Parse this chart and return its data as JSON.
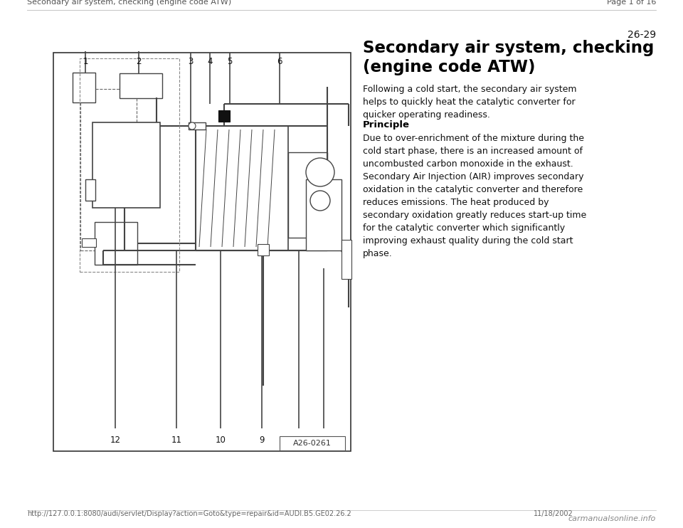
{
  "bg_color": "#ffffff",
  "header_left": "Secondary air system, checking (engine code ATW)",
  "header_right": "Page 1 of 16",
  "page_number": "26-29",
  "title": "Secondary air system, checking\n(engine code ATW)",
  "para1": "Following a cold start, the secondary air system\nhelps to quickly heat the catalytic converter for\nquicker operating readiness.",
  "section_heading": "Principle",
  "para2": "Due to over-enrichment of the mixture during the\ncold start phase, there is an increased amount of\nuncombusted carbon monoxide in the exhaust.\nSecondary Air Injection (AIR) improves secondary\noxidation in the catalytic converter and therefore\nreduces emissions. The heat produced by\nsecondary oxidation greatly reduces start-up time\nfor the catalytic converter which significantly\nimproving exhaust quality during the cold start\nphase.",
  "diagram_label": "A26-0261",
  "footer_url": "http://127.0.0.1:8080/audi/servlet/Display?action=Goto&type=repair&id=AUDI.B5.GE02.26.2",
  "footer_date": "11/18/2002",
  "footer_brand": "carmanualsonline.info",
  "line_color": "#444444",
  "text_color": "#111111",
  "header_color": "#555555",
  "dashed_color": "#666666"
}
